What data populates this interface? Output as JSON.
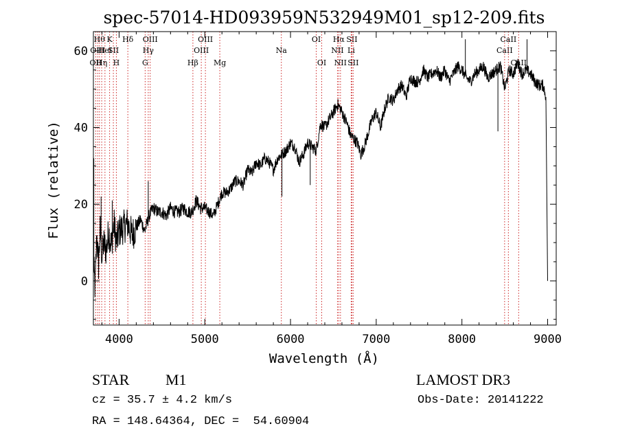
{
  "chart_data": {
    "type": "line",
    "title": "spec-57014-HD093959N532949M01_sp12-209.fits",
    "xlabel": "Wavelength (Å)",
    "ylabel": "Flux (relative)",
    "xlim": [
      3700,
      9100
    ],
    "ylim": [
      -11.5,
      65
    ],
    "x_ticks": [
      4000,
      5000,
      6000,
      7000,
      8000,
      9000
    ],
    "y_ticks": [
      0,
      20,
      40,
      60
    ],
    "x_tick_labels": [
      "4000",
      "5000",
      "6000",
      "7000",
      "8000",
      "9000"
    ],
    "y_tick_labels": [
      "0",
      "20",
      "40",
      "60"
    ],
    "grid": false,
    "series": [
      {
        "name": "flux",
        "color": "#000000",
        "x": [
          3700,
          3720,
          3740,
          3760,
          3780,
          3800,
          3820,
          3850,
          3880,
          3910,
          3940,
          3970,
          4000,
          4050,
          4100,
          4150,
          4200,
          4250,
          4300,
          4350,
          4400,
          4450,
          4500,
          4550,
          4600,
          4650,
          4700,
          4750,
          4800,
          4850,
          4900,
          4950,
          5000,
          5050,
          5100,
          5150,
          5200,
          5250,
          5300,
          5350,
          5400,
          5450,
          5500,
          5550,
          5600,
          5650,
          5700,
          5750,
          5800,
          5850,
          5900,
          5950,
          6000,
          6050,
          6100,
          6150,
          6200,
          6250,
          6300,
          6350,
          6400,
          6450,
          6500,
          6550,
          6580,
          6620,
          6660,
          6700,
          6740,
          6780,
          6820,
          6860,
          6900,
          6950,
          7000,
          7050,
          7100,
          7150,
          7200,
          7250,
          7300,
          7350,
          7400,
          7450,
          7500,
          7550,
          7600,
          7650,
          7700,
          7750,
          7800,
          7850,
          7900,
          7950,
          8000,
          8050,
          8100,
          8150,
          8200,
          8250,
          8300,
          8350,
          8400,
          8450,
          8500,
          8550,
          8600,
          8650,
          8700,
          8750,
          8800,
          8850,
          8900,
          8950,
          8980,
          9000
        ],
        "y": [
          5,
          -2,
          12,
          4,
          14,
          6,
          10,
          8,
          13,
          9,
          15,
          10,
          13,
          14,
          15,
          12,
          14,
          16,
          13,
          17,
          19,
          18,
          18,
          17,
          19,
          18,
          18,
          19,
          18,
          18,
          21,
          19,
          19,
          18,
          17,
          20,
          23,
          23,
          24,
          26,
          26,
          25,
          29,
          28,
          31,
          30,
          32,
          31,
          29,
          32,
          33,
          34,
          36,
          35,
          31,
          33,
          36,
          35,
          34,
          41,
          40,
          42,
          44,
          46,
          45,
          43,
          41,
          38,
          37,
          36,
          33,
          35,
          38,
          42,
          44,
          40,
          45,
          48,
          47,
          50,
          51,
          48,
          53,
          52,
          52,
          55,
          53,
          54,
          55,
          53,
          55,
          52,
          54,
          56,
          55,
          53,
          52,
          54,
          55,
          56,
          53,
          54,
          55,
          56,
          50,
          55,
          54,
          57,
          54,
          55,
          54,
          52,
          51,
          51,
          48,
          0
        ],
        "spikes": [
          {
            "x": 3705,
            "y": 32
          },
          {
            "x": 3790,
            "y": 22
          },
          {
            "x": 3920,
            "y": 21
          },
          {
            "x": 4340,
            "y": 26
          },
          {
            "x": 5900,
            "y": 22
          },
          {
            "x": 6230,
            "y": 25
          },
          {
            "x": 8040,
            "y": 63
          },
          {
            "x": 8420,
            "y": 39
          },
          {
            "x": 8760,
            "y": 63
          }
        ]
      }
    ],
    "line_marks": [
      {
        "x": 3727,
        "row": 2,
        "label": "OII"
      },
      {
        "x": 3750,
        "row": 1,
        "label": "OIII"
      },
      {
        "x": 3770,
        "row": 0,
        "label": "Hθ"
      },
      {
        "x": 3797,
        "row": 2,
        "label": "Hη"
      },
      {
        "x": 3835,
        "row": 1,
        "label": "HeI"
      },
      {
        "x": 3889,
        "row": 0,
        "label": "K"
      },
      {
        "x": 3933,
        "row": 1,
        "label": "SII"
      },
      {
        "x": 3968,
        "row": 2,
        "label": "H"
      },
      {
        "x": 4102,
        "row": 0,
        "label": "Hδ"
      },
      {
        "x": 4304,
        "row": 2,
        "label": "G"
      },
      {
        "x": 4340,
        "row": 1,
        "label": "Hγ"
      },
      {
        "x": 4363,
        "row": 0,
        "label": "OIII"
      },
      {
        "x": 4861,
        "row": 2,
        "label": "Hβ"
      },
      {
        "x": 4959,
        "row": 1,
        "label": "OIII"
      },
      {
        "x": 5007,
        "row": 0,
        "label": "OIII"
      },
      {
        "x": 5175,
        "row": 2,
        "label": "Mg"
      },
      {
        "x": 5893,
        "row": 1,
        "label": "Na"
      },
      {
        "x": 6300,
        "row": 0,
        "label": "OI"
      },
      {
        "x": 6364,
        "row": 2,
        "label": "OI"
      },
      {
        "x": 6548,
        "row": 1,
        "label": "NII"
      },
      {
        "x": 6563,
        "row": 0,
        "label": "Hα"
      },
      {
        "x": 6583,
        "row": 2,
        "label": "NII"
      },
      {
        "x": 6708,
        "row": 1,
        "label": "Li"
      },
      {
        "x": 6716,
        "row": 0,
        "label": "SII"
      },
      {
        "x": 6731,
        "row": 2,
        "label": "SII"
      },
      {
        "x": 8498,
        "row": 1,
        "label": "CaII"
      },
      {
        "x": 8542,
        "row": 0,
        "label": "CaII"
      },
      {
        "x": 8662,
        "row": 2,
        "label": "CaII"
      }
    ]
  },
  "info": {
    "object_type": "STAR",
    "subclass": "M1",
    "survey": "LAMOST DR3",
    "cz": "cz = 35.7 ± 4.2 km/s",
    "obs_date": "Obs-Date: 20141222",
    "coords": "RA = 148.64364, DEC =  54.60904"
  }
}
